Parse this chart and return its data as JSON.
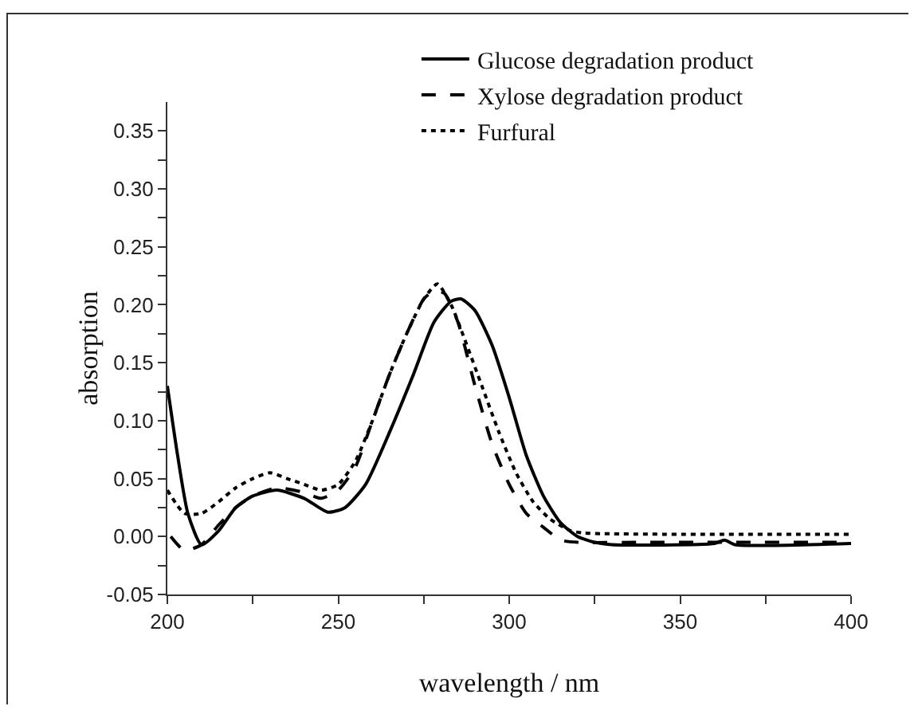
{
  "chart_data": {
    "type": "line",
    "xlabel": "wavelength / nm",
    "ylabel": "absorption",
    "xlim": [
      200,
      400
    ],
    "ylim": [
      -0.05,
      0.375
    ],
    "xticks": [
      200,
      {
        "value": 225,
        "label": null
      },
      250,
      {
        "value": 275,
        "label": null
      },
      300,
      {
        "value": 325,
        "label": null
      },
      350,
      {
        "value": 375,
        "label": null
      },
      400
    ],
    "yticks": [
      {
        "value": -0.05,
        "label": "-0.05"
      },
      {
        "value": -0.025,
        "label": null
      },
      {
        "value": 0,
        "label": "0.00"
      },
      {
        "value": 0.025,
        "label": null
      },
      {
        "value": 0.05,
        "label": "0.05"
      },
      {
        "value": 0.075,
        "label": null
      },
      {
        "value": 0.1,
        "label": "0.10"
      },
      {
        "value": 0.125,
        "label": null
      },
      {
        "value": 0.15,
        "label": "0.15"
      },
      {
        "value": 0.175,
        "label": null
      },
      {
        "value": 0.2,
        "label": "0.20"
      },
      {
        "value": 0.225,
        "label": null
      },
      {
        "value": 0.25,
        "label": "0.25"
      },
      {
        "value": 0.275,
        "label": null
      },
      {
        "value": 0.3,
        "label": "0.30"
      },
      {
        "value": 0.325,
        "label": null
      },
      {
        "value": 0.35,
        "label": "0.35"
      }
    ],
    "grid": false,
    "legend": "top right",
    "marker": "none",
    "series": [
      {
        "name": "Glucose degradation product",
        "color": "#000000",
        "line_style": "solid",
        "x": [
          200,
          203,
          206,
          210,
          215,
          220,
          225,
          232,
          240,
          247,
          252,
          258,
          265,
          272,
          278,
          283,
          286,
          290,
          295,
          300,
          305,
          310,
          315,
          320,
          325,
          330,
          360,
          363,
          366,
          400
        ],
        "values": [
          0.13,
          0.07,
          0.02,
          -0.007,
          0.005,
          0.025,
          0.035,
          0.04,
          0.033,
          0.021,
          0.025,
          0.045,
          0.09,
          0.14,
          0.185,
          0.203,
          0.205,
          0.195,
          0.165,
          0.12,
          0.07,
          0.035,
          0.012,
          0,
          -0.005,
          -0.007,
          -0.006,
          -0.003,
          -0.007,
          -0.006
        ]
      },
      {
        "name": "Xylose degradation product",
        "color": "#000000",
        "line_style": "dashed",
        "x": [
          201,
          205,
          210,
          215,
          220,
          225,
          232,
          240,
          245,
          250,
          255,
          260,
          265,
          270,
          275,
          278,
          281,
          285,
          290,
          295,
          300,
          305,
          310,
          315,
          320,
          340,
          400
        ],
        "values": [
          0,
          -0.012,
          -0.007,
          0.01,
          0.025,
          0.035,
          0.042,
          0.038,
          0.033,
          0.04,
          0.06,
          0.1,
          0.14,
          0.175,
          0.205,
          0.212,
          0.21,
          0.185,
          0.13,
          0.08,
          0.045,
          0.02,
          0.008,
          -0.003,
          -0.005,
          -0.005,
          -0.005
        ]
      },
      {
        "name": "Furfural",
        "color": "#000000",
        "line_style": "dotted",
        "x": [
          200,
          205,
          210,
          215,
          220,
          225,
          230,
          235,
          240,
          245,
          250,
          255,
          260,
          265,
          270,
          275,
          279,
          283,
          287,
          292,
          297,
          302,
          307,
          312,
          318,
          322,
          400
        ],
        "values": [
          0.04,
          0.02,
          0.02,
          0.03,
          0.042,
          0.05,
          0.055,
          0.05,
          0.045,
          0.04,
          0.045,
          0.065,
          0.1,
          0.14,
          0.175,
          0.205,
          0.218,
          0.2,
          0.17,
          0.13,
          0.09,
          0.055,
          0.03,
          0.015,
          0.005,
          0.003,
          0.002
        ]
      }
    ]
  }
}
